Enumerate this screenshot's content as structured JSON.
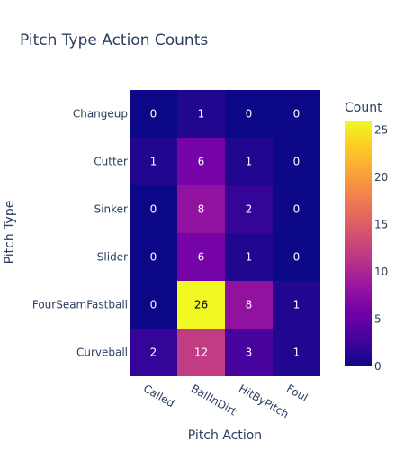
{
  "chart_data": {
    "type": "heatmap",
    "title": "Pitch Type Action Counts",
    "xlabel": "Pitch Action",
    "ylabel": "Pitch Type",
    "x_categories": [
      "Called",
      "BallInDirt",
      "HitByPitch",
      "Foul"
    ],
    "y_categories": [
      "Changeup",
      "Cutter",
      "Sinker",
      "Slider",
      "FourSeamFastball",
      "Curveball"
    ],
    "values": [
      [
        0,
        1,
        0,
        0
      ],
      [
        1,
        6,
        1,
        0
      ],
      [
        0,
        8,
        2,
        0
      ],
      [
        0,
        6,
        1,
        0
      ],
      [
        0,
        26,
        8,
        1
      ],
      [
        2,
        12,
        3,
        1
      ]
    ],
    "colorbar": {
      "title": "Count",
      "range": [
        0,
        26
      ],
      "ticks": [
        0,
        5,
        10,
        15,
        20,
        25
      ]
    },
    "colorscale": [
      "#0d0887",
      "#46039f",
      "#7201a8",
      "#9c179e",
      "#bd3786",
      "#d8576b",
      "#ed7953",
      "#fb9f3a",
      "#fdca26",
      "#f0f921"
    ],
    "text_color": "#2a3f5f",
    "background": "#ffffff"
  }
}
